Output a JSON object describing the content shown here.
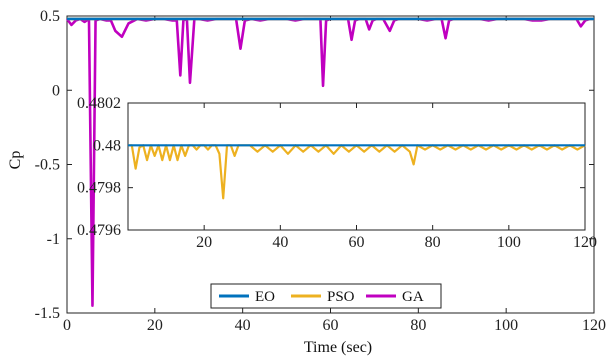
{
  "chart_data": [
    {
      "id": "main",
      "type": "line",
      "xlabel": "Time (sec)",
      "ylabel": "Cp",
      "xlim": [
        0,
        120
      ],
      "ylim": [
        -1.5,
        0.5
      ],
      "xticks": [
        "0",
        "20",
        "40",
        "60",
        "80",
        "100",
        "120"
      ],
      "yticks": [
        "-1.5",
        "-1",
        "-0.5",
        "0",
        "0.5"
      ],
      "legend": {
        "placement": "bottom-center",
        "orientation": "horizontal"
      },
      "series": [
        {
          "name": "EO",
          "color": "#0072BD",
          "x": [
            0,
            120
          ],
          "y": [
            0.48,
            0.48
          ]
        },
        {
          "name": "PSO",
          "color": "#EDB120",
          "x": [
            0,
            120
          ],
          "y": [
            0.48,
            0.48
          ]
        },
        {
          "name": "GA",
          "color": "#C000C0",
          "x": [
            0,
            1,
            2,
            3,
            4,
            5,
            5.8,
            6.5,
            7.5,
            9,
            10,
            11,
            12.5,
            14,
            16,
            18,
            20,
            22,
            24,
            25,
            25.8,
            26.5,
            27.3,
            28,
            29,
            30,
            32,
            34,
            36,
            38.5,
            39.5,
            40.5,
            42,
            44,
            46,
            48,
            50,
            52,
            54,
            56,
            57.7,
            58.3,
            59,
            60,
            62,
            64,
            64.8,
            65.6,
            66.5,
            68,
            68.8,
            69.6,
            70.5,
            72,
            73.5,
            74.5,
            75.5,
            77,
            78,
            80,
            82,
            84,
            85.3,
            86.2,
            87,
            88,
            90,
            92,
            94,
            96,
            98,
            100,
            102,
            104,
            106,
            108,
            110,
            112,
            114,
            116,
            117,
            118,
            119,
            120
          ],
          "y": [
            0.48,
            0.44,
            0.47,
            0.48,
            0.46,
            0.48,
            -1.45,
            0.47,
            0.48,
            0.47,
            0.47,
            0.4,
            0.36,
            0.45,
            0.48,
            0.47,
            0.48,
            0.48,
            0.47,
            0.47,
            0.1,
            0.47,
            0.48,
            0.05,
            0.48,
            0.48,
            0.47,
            0.48,
            0.48,
            0.48,
            0.28,
            0.47,
            0.48,
            0.47,
            0.48,
            0.48,
            0.48,
            0.47,
            0.48,
            0.48,
            0.48,
            0.03,
            0.47,
            0.48,
            0.48,
            0.48,
            0.34,
            0.47,
            0.48,
            0.48,
            0.41,
            0.47,
            0.48,
            0.48,
            0.4,
            0.47,
            0.48,
            0.48,
            0.48,
            0.48,
            0.47,
            0.48,
            0.48,
            0.35,
            0.47,
            0.48,
            0.48,
            0.48,
            0.48,
            0.47,
            0.48,
            0.48,
            0.48,
            0.48,
            0.47,
            0.47,
            0.48,
            0.48,
            0.48,
            0.48,
            0.43,
            0.47,
            0.48,
            0.48
          ]
        }
      ]
    },
    {
      "id": "inset",
      "type": "line",
      "xlim": [
        0,
        120
      ],
      "ylim": [
        0.4796,
        0.4802
      ],
      "xticks": [
        "20",
        "40",
        "60",
        "80",
        "100",
        "120"
      ],
      "yticks": [
        "0.4796",
        "0.4798",
        "0.48",
        "0.4802"
      ],
      "series": [
        {
          "name": "EO",
          "color": "#0072BD",
          "x": [
            0,
            120
          ],
          "y": [
            0.48,
            0.48
          ]
        },
        {
          "name": "PSO",
          "color": "#EDB120",
          "x": [
            0,
            1,
            2,
            3,
            4,
            5,
            6,
            7,
            8,
            9,
            10,
            11,
            12,
            13,
            14,
            15,
            16,
            17,
            18,
            19,
            20,
            21,
            22,
            23,
            24,
            25,
            26,
            27,
            28,
            29,
            30,
            32,
            34,
            36,
            38,
            40,
            42,
            44,
            46,
            48,
            50,
            52,
            54,
            56,
            58,
            60,
            62,
            64,
            66,
            68,
            70,
            72,
            74,
            75,
            76,
            78,
            80,
            82,
            84,
            86,
            88,
            90,
            92,
            94,
            96,
            98,
            100,
            102,
            104,
            106,
            108,
            110,
            112,
            114,
            116,
            118,
            120
          ],
          "y": [
            0.48,
            0.48,
            0.47989,
            0.47999,
            0.48,
            0.47993,
            0.48,
            0.47995,
            0.48,
            0.47993,
            0.48,
            0.47993,
            0.48,
            0.47993,
            0.48,
            0.47995,
            0.48,
            0.48,
            0.47998,
            0.48,
            0.48,
            0.47998,
            0.48,
            0.48,
            0.47996,
            0.47975,
            0.48,
            0.48,
            0.47995,
            0.48,
            0.48,
            0.48,
            0.47997,
            0.48,
            0.47997,
            0.48,
            0.47996,
            0.48,
            0.47997,
            0.48,
            0.47997,
            0.48,
            0.47996,
            0.48,
            0.47997,
            0.48,
            0.47997,
            0.48,
            0.47997,
            0.48,
            0.47997,
            0.48,
            0.47997,
            0.47991,
            0.48,
            0.47998,
            0.48,
            0.47998,
            0.48,
            0.47998,
            0.48,
            0.47998,
            0.48,
            0.47998,
            0.48,
            0.47998,
            0.48,
            0.47998,
            0.48,
            0.47998,
            0.48,
            0.47998,
            0.48,
            0.47998,
            0.48,
            0.47998,
            0.48
          ]
        }
      ]
    }
  ]
}
